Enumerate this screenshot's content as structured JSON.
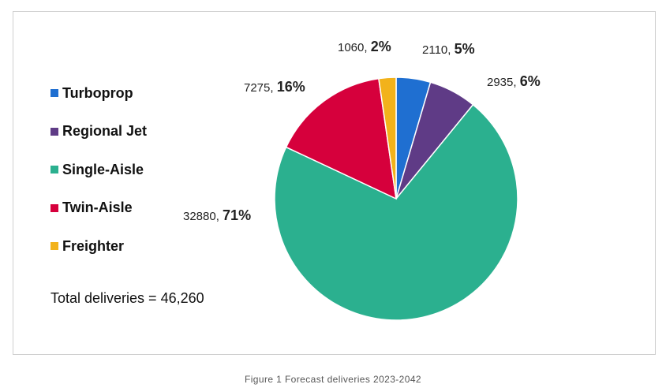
{
  "chart_data": {
    "type": "pie",
    "categories": [
      "Turboprop",
      "Regional Jet",
      "Single-Aisle",
      "Twin-Aisle",
      "Freighter"
    ],
    "values": [
      2110,
      2935,
      32880,
      7275,
      1060
    ],
    "percent_labels": [
      "5%",
      "6%",
      "71%",
      "16%",
      "2%"
    ],
    "colors": [
      "#1f6fd1",
      "#5f3b86",
      "#2bb08f",
      "#d6003c",
      "#f2b21b"
    ],
    "legend": "left",
    "title": ""
  },
  "total_text": "Total deliveries = 46,260",
  "caption": "Figure 1 Forecast deliveries 2023-2042"
}
